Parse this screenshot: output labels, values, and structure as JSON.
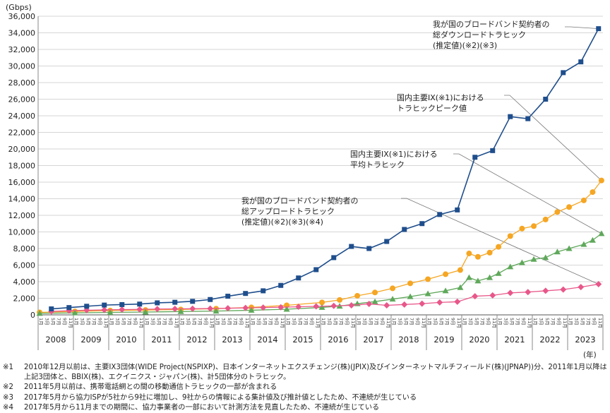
{
  "chart_data": {
    "type": "line",
    "y_unit": "(Gbps)",
    "x_unit": "(年)",
    "ylim": [
      0,
      36000
    ],
    "y_ticks": [
      "0",
      "2,000",
      "4,000",
      "6,000",
      "8,000",
      "10,000",
      "12,000",
      "14,000",
      "16,000",
      "18,000",
      "20,000",
      "22,000",
      "24,000",
      "26,000",
      "28,000",
      "30,000",
      "32,000",
      "34,000",
      "36,000"
    ],
    "years": [
      "2008",
      "2009",
      "2010",
      "2011",
      "2012",
      "2013",
      "2014",
      "2015",
      "2016",
      "2017",
      "2018",
      "2019",
      "2020",
      "2021",
      "2022",
      "2023"
    ],
    "month_ticks": [
      "1月",
      "3月",
      "5月",
      "7月",
      "9月",
      "11月"
    ],
    "grid": "horizontal",
    "series": [
      {
        "name": "我が国のブロードバンド契約者の総ダウンロードトラヒック(推定値)(※2)(※3)",
        "label_lines": [
          "我が国のブロードバンド契約者の",
          "総ダウンロードトラヒック",
          "(推定値)(※2)(※3)"
        ],
        "color": "#1f4e8c",
        "marker": "square",
        "points": [
          [
            "2008-05",
            720
          ],
          [
            "2008-11",
            880
          ],
          [
            "2009-05",
            1040
          ],
          [
            "2009-11",
            1180
          ],
          [
            "2010-05",
            1240
          ],
          [
            "2010-11",
            1300
          ],
          [
            "2011-05",
            1450
          ],
          [
            "2011-11",
            1520
          ],
          [
            "2012-05",
            1630
          ],
          [
            "2012-11",
            1850
          ],
          [
            "2013-05",
            2250
          ],
          [
            "2013-11",
            2580
          ],
          [
            "2014-05",
            2900
          ],
          [
            "2014-11",
            3550
          ],
          [
            "2015-05",
            4450
          ],
          [
            "2015-11",
            5450
          ],
          [
            "2016-05",
            6900
          ],
          [
            "2016-11",
            8250
          ],
          [
            "2017-05",
            8000
          ],
          [
            "2017-11",
            8850
          ],
          [
            "2018-05",
            10300
          ],
          [
            "2018-11",
            11000
          ],
          [
            "2019-05",
            12100
          ],
          [
            "2019-11",
            12650
          ],
          [
            "2020-05",
            19000
          ],
          [
            "2020-11",
            19800
          ],
          [
            "2021-05",
            23900
          ],
          [
            "2021-11",
            23650
          ],
          [
            "2022-05",
            26000
          ],
          [
            "2022-11",
            29200
          ],
          [
            "2023-05",
            30500
          ],
          [
            "2023-11",
            34500
          ]
        ]
      },
      {
        "name": "国内主要IX(※1)におけるトラヒックピーク値",
        "label_lines": [
          "国内主要IX(※1)における",
          "トラヒックピーク値"
        ],
        "color": "#f5a623",
        "marker": "circle",
        "points": [
          [
            "2008-01",
            300
          ],
          [
            "2009-01",
            420
          ],
          [
            "2010-01",
            520
          ],
          [
            "2011-01",
            580
          ],
          [
            "2012-01",
            650
          ],
          [
            "2013-01",
            750
          ],
          [
            "2014-01",
            900
          ],
          [
            "2015-01",
            1150
          ],
          [
            "2016-01",
            1500
          ],
          [
            "2016-07",
            1800
          ],
          [
            "2017-01",
            2300
          ],
          [
            "2017-07",
            2700
          ],
          [
            "2018-01",
            3200
          ],
          [
            "2018-07",
            3800
          ],
          [
            "2019-01",
            4300
          ],
          [
            "2019-07",
            4900
          ],
          [
            "2019-12",
            5400
          ],
          [
            "2020-03",
            7400
          ],
          [
            "2020-06",
            7000
          ],
          [
            "2020-10",
            7500
          ],
          [
            "2021-01",
            8200
          ],
          [
            "2021-05",
            9500
          ],
          [
            "2021-09",
            10400
          ],
          [
            "2022-01",
            10700
          ],
          [
            "2022-05",
            11500
          ],
          [
            "2022-09",
            12400
          ],
          [
            "2023-01",
            13000
          ],
          [
            "2023-06",
            13800
          ],
          [
            "2023-09",
            14800
          ],
          [
            "2023-12",
            16200
          ]
        ]
      },
      {
        "name": "国内主要IX(※1)における平均トラヒック",
        "label_lines": [
          "国内主要IX(※1)における",
          "平均トラヒック"
        ],
        "color": "#5fa85a",
        "marker": "triangle",
        "points": [
          [
            "2008-01",
            180
          ],
          [
            "2009-01",
            240
          ],
          [
            "2010-01",
            300
          ],
          [
            "2011-01",
            340
          ],
          [
            "2012-01",
            400
          ],
          [
            "2013-01",
            460
          ],
          [
            "2014-01",
            560
          ],
          [
            "2015-01",
            680
          ],
          [
            "2016-01",
            900
          ],
          [
            "2016-07",
            1050
          ],
          [
            "2017-01",
            1350
          ],
          [
            "2017-07",
            1600
          ],
          [
            "2018-01",
            1900
          ],
          [
            "2018-07",
            2200
          ],
          [
            "2019-01",
            2550
          ],
          [
            "2019-07",
            2900
          ],
          [
            "2019-12",
            3300
          ],
          [
            "2020-03",
            4500
          ],
          [
            "2020-06",
            4100
          ],
          [
            "2020-10",
            4500
          ],
          [
            "2021-01",
            5000
          ],
          [
            "2021-05",
            5800
          ],
          [
            "2021-09",
            6300
          ],
          [
            "2022-01",
            6700
          ],
          [
            "2022-05",
            6900
          ],
          [
            "2022-09",
            7600
          ],
          [
            "2023-01",
            8000
          ],
          [
            "2023-06",
            8500
          ],
          [
            "2023-09",
            9000
          ],
          [
            "2023-12",
            9800
          ]
        ]
      },
      {
        "name": "我が国のブロードバンド契約者の総アップロードトラヒック(推定値)(※2)(※3)(※4)",
        "label_lines": [
          "我が国のブロードバンド契約者の",
          "総アップロードトラヒック",
          "(推定値)(※2)(※3)(※4)"
        ],
        "color": "#e8578a",
        "marker": "diamond",
        "points": [
          [
            "2008-05",
            420
          ],
          [
            "2008-11",
            500
          ],
          [
            "2009-05",
            560
          ],
          [
            "2009-11",
            600
          ],
          [
            "2010-05",
            640
          ],
          [
            "2010-11",
            660
          ],
          [
            "2011-05",
            700
          ],
          [
            "2011-11",
            720
          ],
          [
            "2012-05",
            740
          ],
          [
            "2012-11",
            760
          ],
          [
            "2013-05",
            800
          ],
          [
            "2013-11",
            840
          ],
          [
            "2014-05",
            880
          ],
          [
            "2014-11",
            920
          ],
          [
            "2015-05",
            980
          ],
          [
            "2015-11",
            1020
          ],
          [
            "2016-05",
            1080
          ],
          [
            "2016-11",
            1150
          ],
          [
            "2017-05",
            1320
          ],
          [
            "2017-11",
            1150
          ],
          [
            "2018-05",
            1250
          ],
          [
            "2018-11",
            1350
          ],
          [
            "2019-05",
            1500
          ],
          [
            "2019-11",
            1580
          ],
          [
            "2020-05",
            2250
          ],
          [
            "2020-11",
            2350
          ],
          [
            "2021-05",
            2650
          ],
          [
            "2021-11",
            2750
          ],
          [
            "2022-05",
            2900
          ],
          [
            "2022-11",
            3050
          ],
          [
            "2023-05",
            3350
          ],
          [
            "2023-11",
            3700
          ]
        ]
      }
    ]
  },
  "notes": [
    {
      "mark": "※1",
      "text": "2010年12月以前は、主要IX3団体(WIDE Project(NSPIXP)、日本インターネットエクスチェンジ(株)(JPIX)及びインターネットマルチフィールド(株)(JPNAP))分、2011年1月以降は上記3団体と、BBIX(株)、エクイニクス・ジャパン(株)、計5団体分のトラヒック。"
    },
    {
      "mark": "※2",
      "text": "2011年5月以前は、携帯電話網との間の移動通信トラヒックの一部が含まれる"
    },
    {
      "mark": "※3",
      "text": "2017年5月から協力ISPが5社から9社に増加し、9社からの情報による集計値及び推計値としたため、不連続が生じている"
    },
    {
      "mark": "※4",
      "text": "2017年5月から11月までの期間に、協力事業者の一部において計測方法を見直したため、不連続が生じている"
    }
  ]
}
